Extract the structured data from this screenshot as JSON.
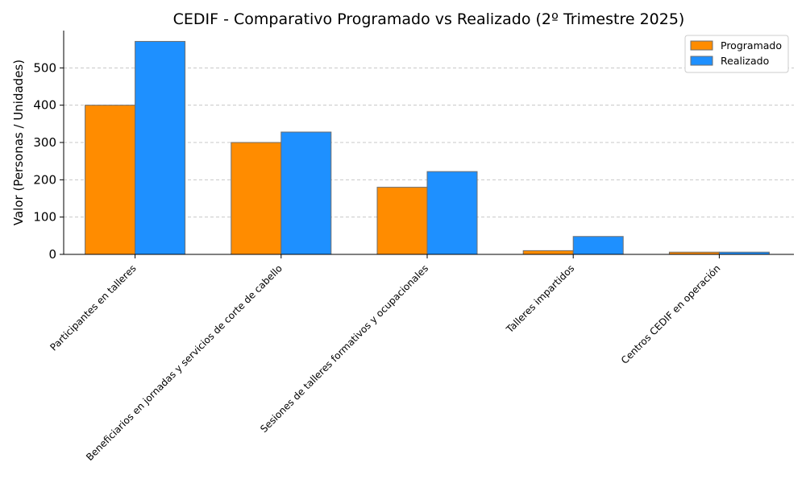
{
  "chart_data": {
    "type": "bar",
    "title": "CEDIF - Comparativo Programado vs Realizado (2º Trimestre 2025)",
    "xlabel": "",
    "ylabel": "Valor (Personas / Unidades)",
    "ylim": [
      0,
      600
    ],
    "yticks": [
      0,
      100,
      200,
      300,
      400,
      500
    ],
    "grid": "y-dashed",
    "legend_position": "top-right",
    "categories": [
      "Participantes en talleres",
      "Beneficiarios en jornadas y servicios de corte de cabello",
      "Sesiones de talleres formativos y ocupacionales",
      "Talleres impartidos",
      "Centros CEDIF en operación"
    ],
    "series": [
      {
        "name": "Programado",
        "color": "#ff8c00",
        "values": [
          400,
          300,
          180,
          10,
          6
        ]
      },
      {
        "name": "Realizado",
        "color": "#1e90ff",
        "values": [
          571,
          328,
          222,
          48,
          6
        ]
      }
    ]
  }
}
